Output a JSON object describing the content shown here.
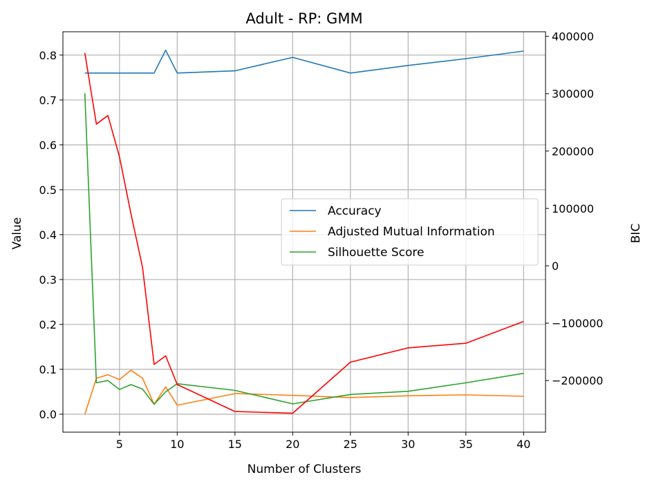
{
  "chart_data": {
    "type": "line",
    "title": "Adult - RP: GMM",
    "xlabel": "Number of Clusters",
    "ylabel": "Value",
    "ylabel_right": "BIC",
    "xlim": [
      0.1,
      41.9
    ],
    "ylim": [
      -0.04,
      0.852
    ],
    "ylim_right": [
      -290000,
      408000
    ],
    "xticks": [
      5,
      10,
      15,
      20,
      25,
      30,
      35,
      40
    ],
    "yticks": [
      0.0,
      0.1,
      0.2,
      0.3,
      0.4,
      0.5,
      0.6,
      0.7,
      0.8
    ],
    "yticks_right": [
      -200000,
      -100000,
      0,
      100000,
      200000,
      300000,
      400000
    ],
    "grid": true,
    "legend_position": "center-right",
    "x": [
      2,
      3,
      4,
      5,
      6,
      7,
      8,
      9,
      10,
      15,
      20,
      25,
      30,
      35,
      40
    ],
    "series": [
      {
        "name": "Accuracy",
        "axis": "left",
        "color": "#1f77b4",
        "values": [
          0.76,
          0.76,
          0.76,
          0.76,
          0.76,
          0.76,
          0.76,
          0.811,
          0.76,
          0.765,
          0.795,
          0.76,
          0.777,
          0.792,
          0.809
        ]
      },
      {
        "name": "Adjusted Mutual Information",
        "axis": "left",
        "color": "#ff7f0e",
        "values": [
          0.0,
          0.08,
          0.088,
          0.077,
          0.098,
          0.08,
          0.022,
          0.061,
          0.02,
          0.046,
          0.042,
          0.037,
          0.041,
          0.043,
          0.04
        ]
      },
      {
        "name": "Silhouette Score",
        "axis": "left",
        "color": "#2ca02c",
        "values": [
          0.715,
          0.07,
          0.075,
          0.055,
          0.066,
          0.056,
          0.022,
          0.05,
          0.068,
          0.053,
          0.023,
          0.044,
          0.051,
          0.07,
          0.091
        ]
      },
      {
        "name": "",
        "axis": "right",
        "color": "#ff0000",
        "values": [
          371000,
          247000,
          262000,
          190000,
          90000,
          -3000,
          -172000,
          -157000,
          -207000,
          -254000,
          -257000,
          -168000,
          -143000,
          -135000,
          -97000
        ]
      }
    ]
  }
}
